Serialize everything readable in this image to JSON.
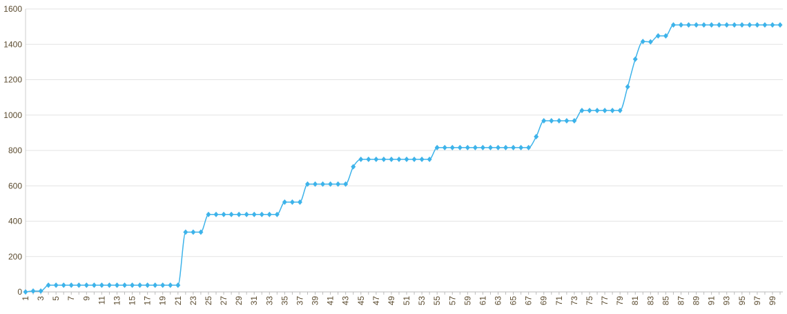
{
  "chart_data": {
    "type": "line",
    "categories": [
      "1",
      null,
      "3",
      null,
      "5",
      null,
      "7",
      null,
      "9",
      null,
      "11",
      null,
      "13",
      null,
      "15",
      null,
      "17",
      null,
      "19",
      null,
      "21",
      null,
      "23",
      null,
      "25",
      null,
      "27",
      null,
      "29",
      null,
      "31",
      null,
      "33",
      null,
      "35",
      null,
      "37",
      null,
      "39",
      null,
      "41",
      null,
      "43",
      null,
      "45",
      null,
      "47",
      null,
      "49",
      null,
      "51",
      null,
      "53",
      null,
      "55",
      null,
      "57",
      null,
      "59",
      null,
      "61",
      null,
      "63",
      null,
      "65",
      null,
      "67",
      null,
      "69",
      null,
      "71",
      null,
      "73",
      null,
      "75",
      null,
      "77",
      null,
      "79",
      null,
      "81",
      null,
      "83",
      null,
      "85",
      null,
      "87",
      null,
      "89",
      null,
      "91",
      null,
      "93",
      null,
      "95",
      null,
      "97",
      null,
      "99",
      null
    ],
    "values": [
      0,
      5,
      5,
      38,
      38,
      38,
      38,
      38,
      38,
      38,
      38,
      38,
      38,
      38,
      38,
      38,
      38,
      38,
      38,
      38,
      38,
      338,
      338,
      338,
      438,
      438,
      438,
      438,
      438,
      438,
      438,
      438,
      438,
      438,
      508,
      508,
      508,
      610,
      610,
      610,
      610,
      610,
      610,
      708,
      750,
      750,
      750,
      750,
      750,
      750,
      750,
      750,
      750,
      750,
      816,
      816,
      816,
      816,
      816,
      816,
      816,
      816,
      816,
      816,
      816,
      816,
      816,
      878,
      968,
      968,
      968,
      968,
      968,
      1026,
      1026,
      1026,
      1026,
      1026,
      1026,
      1160,
      1316,
      1416,
      1414,
      1448,
      1448,
      1510,
      1510,
      1510,
      1510,
      1510,
      1510,
      1510,
      1510,
      1510,
      1510,
      1510,
      1510,
      1510,
      1510,
      1510
    ],
    "color": "#3db3ea",
    "ylim": [
      0,
      1600
    ],
    "yticks": [
      0,
      200,
      400,
      600,
      800,
      1000,
      1200,
      1400,
      1600
    ],
    "grid": true
  }
}
